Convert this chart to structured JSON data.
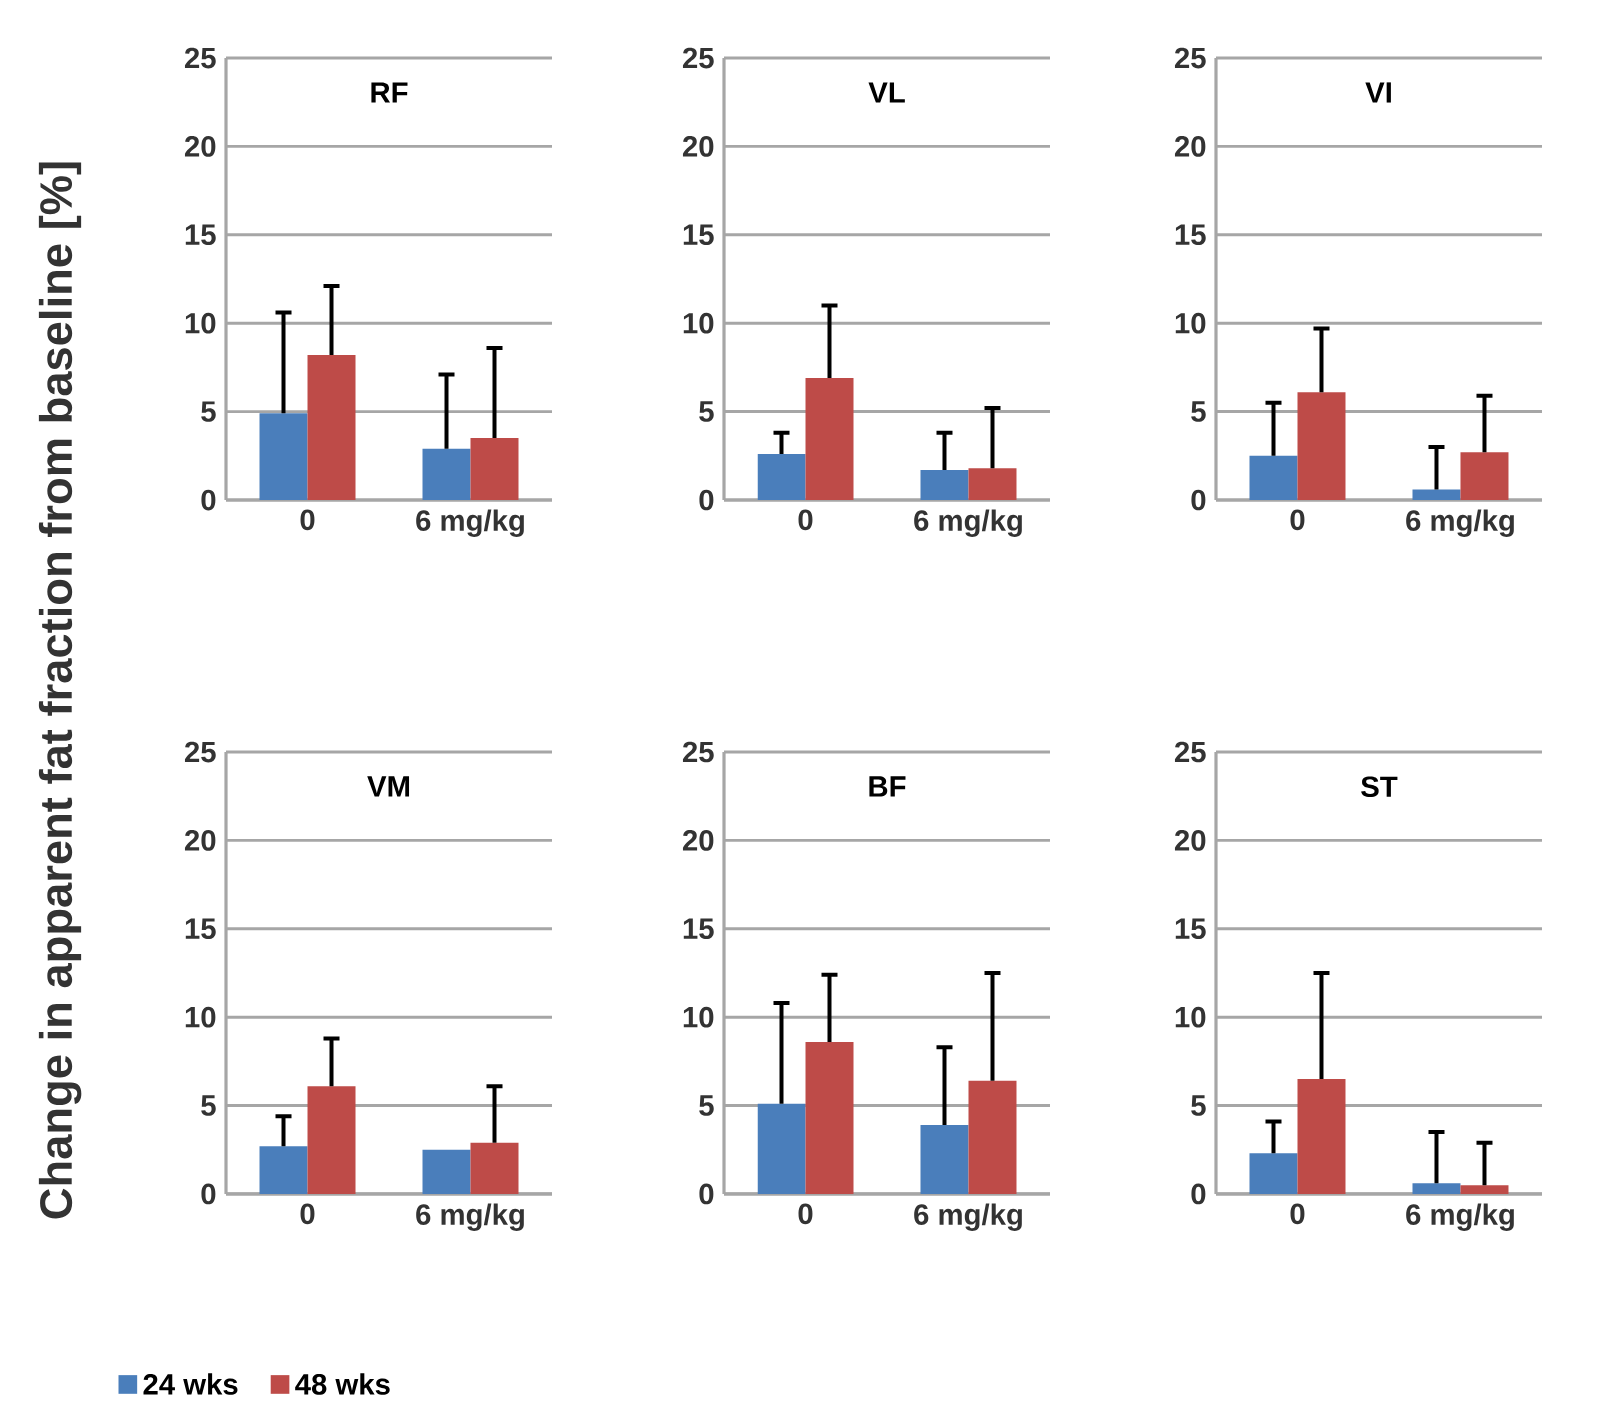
{
  "chart_data": [
    {
      "type": "bar",
      "title": "RF",
      "ylabel": "Change in apparent fat fraction from baseline [%]",
      "categories": [
        "0",
        "6 mg/kg"
      ],
      "ylim": [
        0,
        25
      ],
      "yticks": [
        0,
        5,
        10,
        15,
        20,
        25
      ],
      "grid": "y",
      "series": [
        {
          "color": "#4a7ebb",
          "values": [
            4.9,
            2.9
          ],
          "errors": [
            [
              4.9,
              10.6
            ],
            [
              2.9,
              7.1
            ]
          ]
        },
        {
          "color": "#be4b48",
          "values": [
            8.2,
            3.5
          ],
          "errors": [
            [
              8.2,
              12.1
            ],
            [
              3.5,
              8.6
            ]
          ]
        }
      ]
    },
    {
      "type": "bar",
      "title": "VL",
      "categories": [
        "0",
        "6 mg/kg"
      ],
      "ylim": [
        0,
        25
      ],
      "yticks": [
        0,
        5,
        10,
        15,
        20,
        25
      ],
      "grid": "y",
      "series": [
        {
          "color": "#4a7ebb",
          "values": [
            2.6,
            1.7
          ],
          "errors": [
            [
              2.6,
              3.8
            ],
            [
              1.7,
              3.8
            ]
          ]
        },
        {
          "color": "#be4b48",
          "values": [
            6.9,
            1.8
          ],
          "errors": [
            [
              6.9,
              11.0
            ],
            [
              1.8,
              5.2
            ]
          ]
        }
      ]
    },
    {
      "type": "bar",
      "title": "VI",
      "categories": [
        "0",
        "6 mg/kg"
      ],
      "ylim": [
        0,
        25
      ],
      "yticks": [
        0,
        5,
        10,
        15,
        20,
        25
      ],
      "grid": "y",
      "series": [
        {
          "color": "#4a7ebb",
          "values": [
            2.5,
            0.6
          ],
          "errors": [
            [
              2.5,
              5.5
            ],
            [
              0.6,
              3.0
            ]
          ]
        },
        {
          "color": "#be4b48",
          "values": [
            6.1,
            2.7
          ],
          "errors": [
            [
              6.1,
              9.7
            ],
            [
              2.7,
              5.9
            ]
          ]
        }
      ]
    },
    {
      "type": "bar",
      "title": "VM",
      "categories": [
        "0",
        "6 mg/kg"
      ],
      "ylim": [
        0,
        25
      ],
      "yticks": [
        0,
        5,
        10,
        15,
        20,
        25
      ],
      "grid": "y",
      "legend": "bottom",
      "series": [
        {
          "name": "24 wks",
          "color": "#4a7ebb",
          "values": [
            2.7,
            2.5
          ],
          "errors": [
            [
              2.7,
              4.4
            ],
            null
          ]
        },
        {
          "name": "48 wks",
          "color": "#be4b48",
          "values": [
            6.1,
            2.9
          ],
          "errors": [
            [
              6.1,
              8.8
            ],
            [
              2.9,
              6.1
            ]
          ]
        }
      ]
    },
    {
      "type": "bar",
      "title": "BF",
      "categories": [
        "0",
        "6 mg/kg"
      ],
      "ylim": [
        0,
        25
      ],
      "yticks": [
        0,
        5,
        10,
        15,
        20,
        25
      ],
      "grid": "y",
      "series": [
        {
          "color": "#4a7ebb",
          "values": [
            5.1,
            3.9
          ],
          "errors": [
            [
              5.1,
              10.8
            ],
            [
              3.9,
              8.3
            ]
          ]
        },
        {
          "color": "#be4b48",
          "values": [
            8.6,
            6.4
          ],
          "errors": [
            [
              8.6,
              12.4
            ],
            [
              6.4,
              12.5
            ]
          ]
        }
      ]
    },
    {
      "type": "bar",
      "title": "ST",
      "categories": [
        "0",
        "6 mg/kg"
      ],
      "ylim": [
        0,
        25
      ],
      "yticks": [
        0,
        5,
        10,
        15,
        20,
        25
      ],
      "grid": "y",
      "series": [
        {
          "color": "#4a7ebb",
          "values": [
            2.3,
            0.6
          ],
          "errors": [
            [
              2.3,
              4.1
            ],
            [
              0.6,
              3.5
            ]
          ]
        },
        {
          "color": "#be4b48",
          "values": [
            6.5,
            0.5
          ],
          "errors": [
            [
              6.5,
              12.5
            ],
            [
              0.5,
              2.9
            ]
          ]
        }
      ]
    }
  ]
}
